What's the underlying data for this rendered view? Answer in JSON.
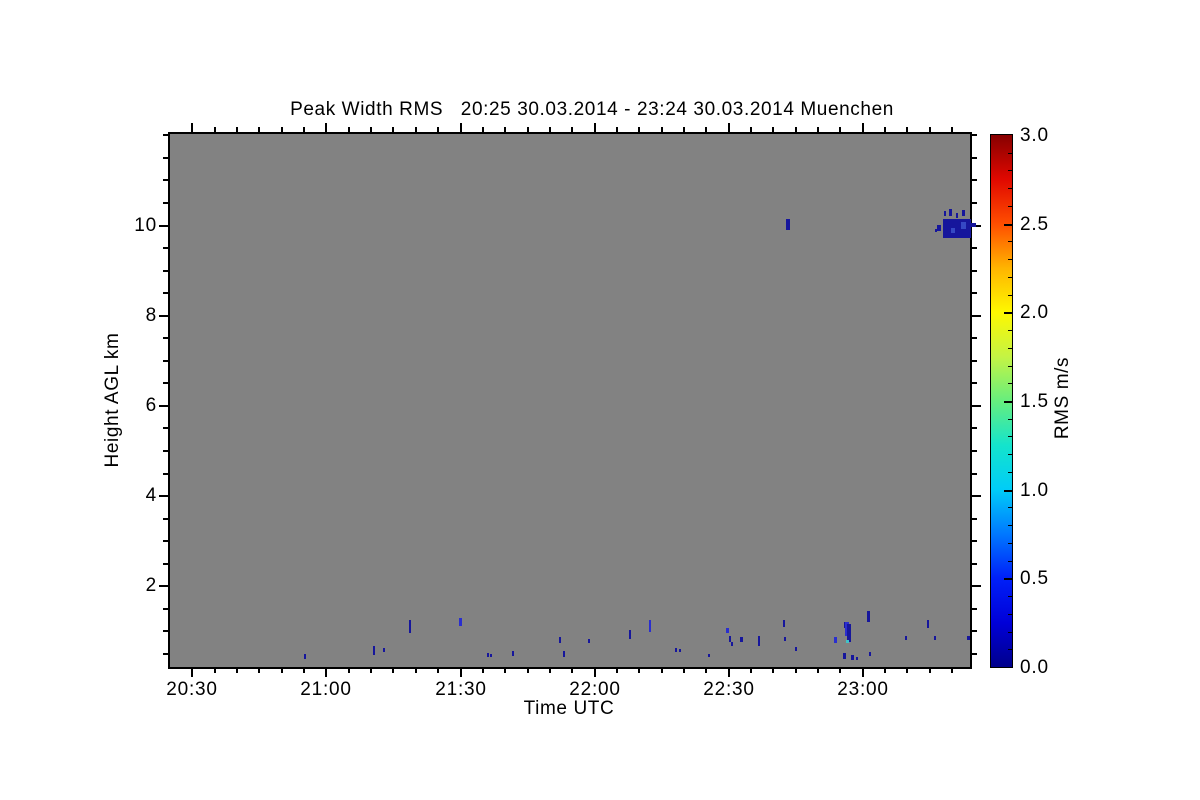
{
  "chart_data": {
    "type": "heatmap",
    "title": "Peak Width RMS   20:25 30.03.2014 - 23:24 30.03.2014 Muenchen",
    "quantity": "Peak Width RMS",
    "time_start": "20:25 30.03.2014",
    "time_end": "23:24 30.03.2014",
    "station": "Muenchen",
    "xlabel": "Time UTC",
    "ylabel": "Height AGL km",
    "grid": false,
    "no_data_color": "#828282",
    "x_axis": {
      "start_label": "20:25",
      "end_label": "23:24",
      "range_min": [
        0,
        179
      ],
      "major_ticks": [
        {
          "t": 5,
          "label": "20:30"
        },
        {
          "t": 35,
          "label": "21:00"
        },
        {
          "t": 65,
          "label": "21:30"
        },
        {
          "t": 95,
          "label": "22:00"
        },
        {
          "t": 125,
          "label": "22:30"
        },
        {
          "t": 155,
          "label": "23:00"
        }
      ],
      "minor_interval_min": 5
    },
    "y_axis": {
      "range_km": [
        0.21,
        12.03
      ],
      "major_ticks": [
        {
          "h": 10,
          "label": "10"
        },
        {
          "h": 8,
          "label": "8"
        },
        {
          "h": 6,
          "label": "6"
        },
        {
          "h": 4,
          "label": "4"
        },
        {
          "h": 2,
          "label": "2"
        }
      ],
      "minor_interval_km": 0.5
    },
    "colorbar": {
      "label": "RMS m/s",
      "min": 0.0,
      "max": 3.0,
      "major_ticks": [
        {
          "v": 0.0,
          "label": "0.0"
        },
        {
          "v": 0.5,
          "label": "0.5"
        },
        {
          "v": 1.0,
          "label": "1.0"
        },
        {
          "v": 1.5,
          "label": "1.5"
        },
        {
          "v": 2.0,
          "label": "2.0"
        },
        {
          "v": 2.5,
          "label": "2.5"
        },
        {
          "v": 3.0,
          "label": "3.0"
        }
      ],
      "minor_interval": 0.1,
      "gradient_stops": [
        {
          "v": 0.0,
          "c": "#00008b"
        },
        {
          "v": 0.25,
          "c": "#0000d8"
        },
        {
          "v": 0.5,
          "c": "#0020f8"
        },
        {
          "v": 0.75,
          "c": "#0078ff"
        },
        {
          "v": 1.0,
          "c": "#00ccf8"
        },
        {
          "v": 1.25,
          "c": "#14e4cc"
        },
        {
          "v": 1.5,
          "c": "#66ee7e"
        },
        {
          "v": 1.75,
          "c": "#c4f444"
        },
        {
          "v": 2.0,
          "c": "#fef800"
        },
        {
          "v": 2.25,
          "c": "#ffb400"
        },
        {
          "v": 2.5,
          "c": "#ff4e00"
        },
        {
          "v": 2.75,
          "c": "#e00800"
        },
        {
          "v": 3.0,
          "c": "#870000"
        }
      ]
    },
    "value_classes": {
      "navy": {
        "color": "#16169c",
        "rms_estimate": 0.1
      },
      "bright": {
        "color": "#2a2ecf",
        "rms_estimate": 0.3
      },
      "mid": {
        "color": "#3548c4",
        "rms_estimate": 0.5
      },
      "cyan": {
        "color": "#40c4c8",
        "rms_estimate": 1.0
      }
    },
    "points": [
      {
        "t": 30.3,
        "h": 0.45,
        "w": 2,
        "hp": 5,
        "c": "navy"
      },
      {
        "t": 45.6,
        "h": 0.57,
        "w": 2,
        "hp": 9,
        "c": "navy"
      },
      {
        "t": 47.8,
        "h": 0.59,
        "w": 2,
        "hp": 4,
        "c": "navy"
      },
      {
        "t": 53.6,
        "h": 1.1,
        "w": 2,
        "hp": 13,
        "c": "navy"
      },
      {
        "t": 64.9,
        "h": 1.21,
        "w": 3,
        "hp": 8,
        "c": "bright"
      },
      {
        "t": 71.1,
        "h": 0.47,
        "w": 2,
        "hp": 4,
        "c": "navy"
      },
      {
        "t": 71.8,
        "h": 0.47,
        "w": 2,
        "hp": 3,
        "c": "navy"
      },
      {
        "t": 76.8,
        "h": 0.5,
        "w": 2,
        "hp": 5,
        "c": "navy"
      },
      {
        "t": 87.3,
        "h": 0.81,
        "w": 2,
        "hp": 6,
        "c": "navy"
      },
      {
        "t": 88.2,
        "h": 0.5,
        "w": 2,
        "hp": 6,
        "c": "navy"
      },
      {
        "t": 93.8,
        "h": 0.79,
        "w": 2,
        "hp": 4,
        "c": "navy"
      },
      {
        "t": 103.0,
        "h": 0.92,
        "w": 2,
        "hp": 9,
        "c": "navy"
      },
      {
        "t": 107.3,
        "h": 1.12,
        "w": 2,
        "hp": 12,
        "c": "bright"
      },
      {
        "t": 113.3,
        "h": 0.59,
        "w": 2,
        "hp": 4,
        "c": "navy"
      },
      {
        "t": 114.2,
        "h": 0.58,
        "w": 2,
        "hp": 3,
        "c": "navy"
      },
      {
        "t": 120.7,
        "h": 0.47,
        "w": 2,
        "hp": 3,
        "c": "navy"
      },
      {
        "t": 124.8,
        "h": 1.01,
        "w": 3,
        "hp": 5,
        "c": "bright"
      },
      {
        "t": 125.3,
        "h": 0.83,
        "w": 2,
        "hp": 6,
        "c": "navy"
      },
      {
        "t": 125.8,
        "h": 0.72,
        "w": 2,
        "hp": 4,
        "c": "navy"
      },
      {
        "t": 127.9,
        "h": 0.83,
        "w": 3,
        "hp": 5,
        "c": "navy"
      },
      {
        "t": 131.9,
        "h": 0.79,
        "w": 2,
        "hp": 10,
        "c": "navy"
      },
      {
        "t": 137.3,
        "h": 1.17,
        "w": 2,
        "hp": 7,
        "c": "navy"
      },
      {
        "t": 137.6,
        "h": 0.83,
        "w": 2,
        "hp": 4,
        "c": "navy"
      },
      {
        "t": 140.0,
        "h": 0.61,
        "w": 2,
        "hp": 4,
        "c": "navy"
      },
      {
        "t": 149.0,
        "h": 0.81,
        "w": 3,
        "hp": 6,
        "c": "bright"
      },
      {
        "t": 151.0,
        "h": 1.15,
        "w": 2,
        "hp": 6,
        "c": "navy"
      },
      {
        "t": 151.4,
        "h": 1.05,
        "w": 4,
        "hp": 14,
        "c": "bright"
      },
      {
        "t": 151.9,
        "h": 0.97,
        "w": 4,
        "hp": 18,
        "c": "navy"
      },
      {
        "t": 151.6,
        "h": 0.77,
        "w": 3,
        "hp": 3,
        "c": "cyan"
      },
      {
        "t": 151.0,
        "h": 0.45,
        "w": 3,
        "hp": 6,
        "c": "navy"
      },
      {
        "t": 152.6,
        "h": 0.43,
        "w": 3,
        "hp": 5,
        "c": "navy"
      },
      {
        "t": 153.8,
        "h": 0.4,
        "w": 2,
        "hp": 3,
        "c": "navy"
      },
      {
        "t": 156.2,
        "h": 1.34,
        "w": 3,
        "hp": 11,
        "c": "navy"
      },
      {
        "t": 156.6,
        "h": 0.5,
        "w": 2,
        "hp": 4,
        "c": "navy"
      },
      {
        "t": 164.7,
        "h": 0.86,
        "w": 2,
        "hp": 4,
        "c": "navy"
      },
      {
        "t": 169.7,
        "h": 1.17,
        "w": 2,
        "hp": 8,
        "c": "navy"
      },
      {
        "t": 171.2,
        "h": 0.86,
        "w": 2,
        "hp": 4,
        "c": "navy"
      },
      {
        "t": 178.6,
        "h": 0.86,
        "w": 3,
        "hp": 4,
        "c": "navy"
      },
      {
        "t": 138.2,
        "h": 10.03,
        "w": 4,
        "hp": 11,
        "c": "navy"
      },
      {
        "t": 176.0,
        "h": 9.93,
        "w": 28,
        "hp": 19,
        "c": "navy"
      },
      {
        "t": 173.5,
        "h": 10.26,
        "w": 2,
        "hp": 5,
        "c": "navy"
      },
      {
        "t": 174.6,
        "h": 10.3,
        "w": 3,
        "hp": 7,
        "c": "navy"
      },
      {
        "t": 176.2,
        "h": 10.23,
        "w": 2,
        "hp": 5,
        "c": "navy"
      },
      {
        "t": 177.5,
        "h": 10.28,
        "w": 3,
        "hp": 6,
        "c": "navy"
      },
      {
        "t": 172.0,
        "h": 9.95,
        "w": 4,
        "hp": 6,
        "c": "navy"
      },
      {
        "t": 171.4,
        "h": 9.88,
        "w": 2,
        "hp": 3,
        "c": "navy"
      },
      {
        "t": 175.3,
        "h": 9.9,
        "w": 4,
        "hp": 5,
        "c": "mid"
      },
      {
        "t": 177.6,
        "h": 10.0,
        "w": 5,
        "hp": 7,
        "c": "mid"
      },
      {
        "t": 179.6,
        "h": 10.02,
        "w": 6,
        "hp": 4,
        "c": "navy"
      }
    ]
  }
}
